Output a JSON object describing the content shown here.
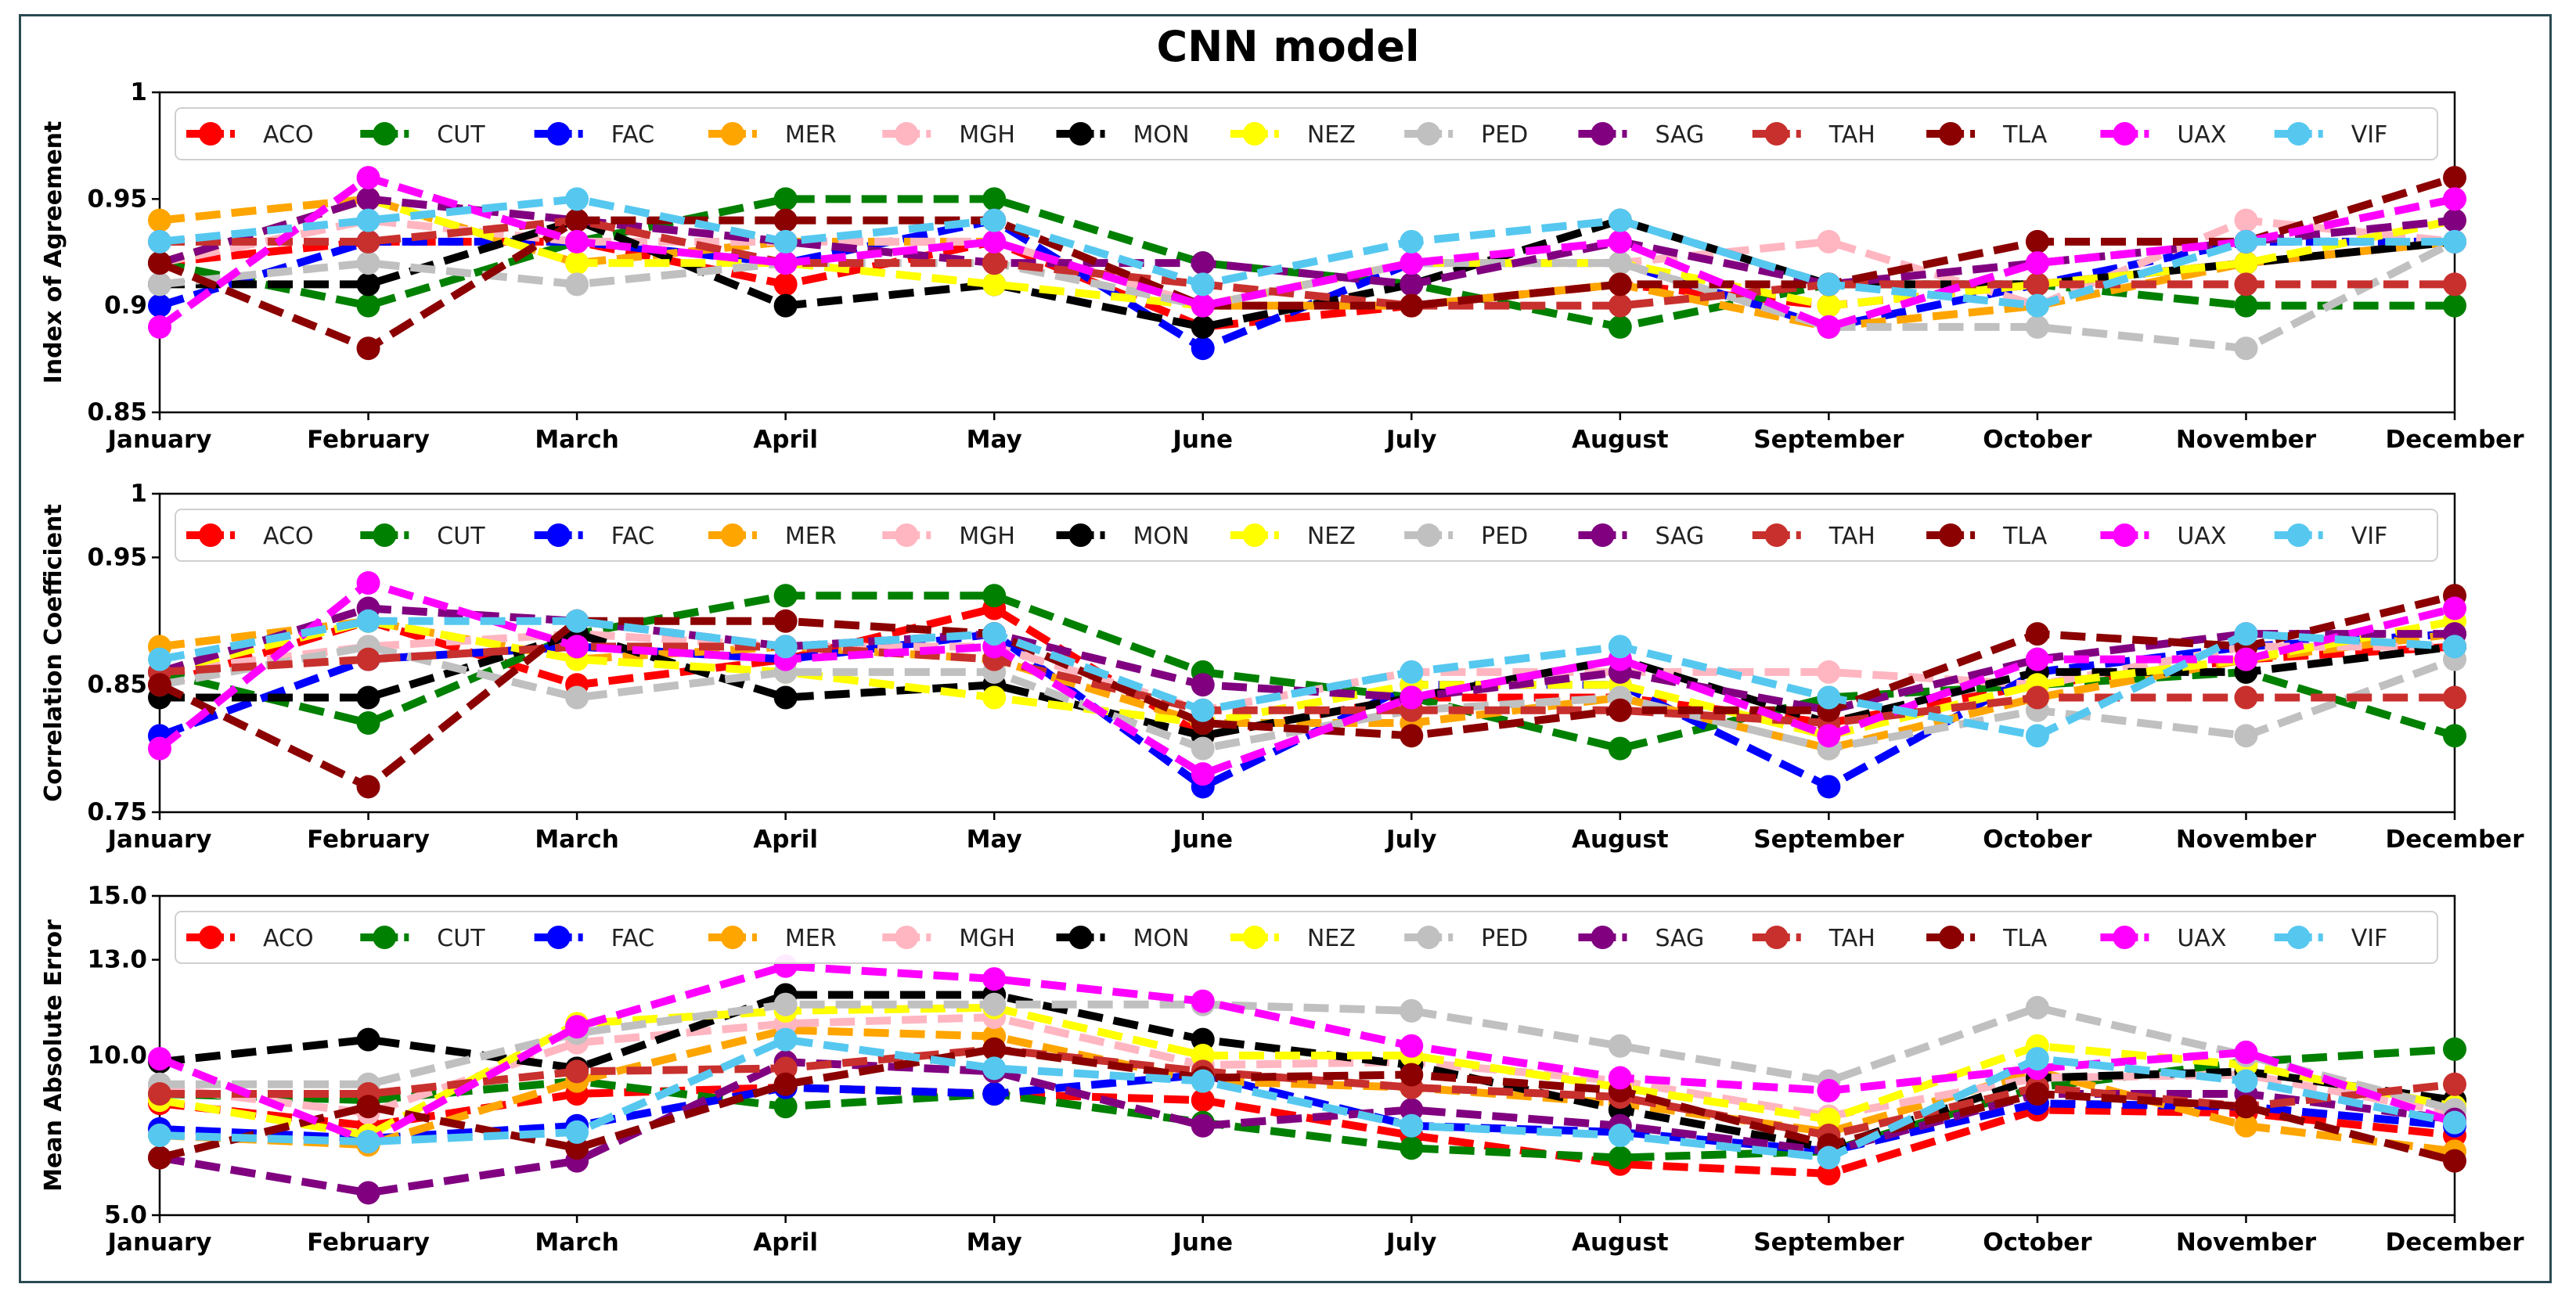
{
  "title": "CNN model",
  "stations": [
    "ACO",
    "CUT",
    "FAC",
    "MER",
    "MGH",
    "MON",
    "NEZ",
    "PED",
    "SAG",
    "TAH",
    "TLA",
    "UAX",
    "VIF"
  ],
  "colors": [
    "#ff0000",
    "#008000",
    "#0000ff",
    "#ffa500",
    "#ffb6c1",
    "#000000",
    "#ffff00",
    "#c0c0c0",
    "#800080",
    "#c8302d",
    "#8b0000",
    "#ff00ff",
    "#56c8f0"
  ],
  "chart_data": [
    {
      "type": "line",
      "ylabel": "Index of Agreement",
      "ylim": [
        0.85,
        1
      ],
      "yticks": [
        0.85,
        0.9,
        0.95,
        1
      ],
      "ytick_labels": [
        "0.85",
        "0.9",
        "0.95",
        "1"
      ],
      "categories": [
        "January",
        "February",
        "March",
        "April",
        "May",
        "June",
        "July",
        "August",
        "September",
        "October",
        "November",
        "December"
      ],
      "series": [
        {
          "name": "ACO",
          "values": [
            0.92,
            0.93,
            0.93,
            0.91,
            0.93,
            0.89,
            0.9,
            0.91,
            0.9,
            0.91,
            0.92,
            0.93
          ]
        },
        {
          "name": "CUT",
          "values": [
            0.92,
            0.9,
            0.93,
            0.95,
            0.95,
            0.92,
            0.91,
            0.89,
            0.91,
            0.91,
            0.9,
            0.9
          ]
        },
        {
          "name": "FAC",
          "values": [
            0.9,
            0.93,
            0.93,
            0.92,
            0.94,
            0.88,
            0.92,
            0.92,
            0.89,
            0.91,
            0.93,
            0.93
          ]
        },
        {
          "name": "MER",
          "values": [
            0.94,
            0.95,
            0.92,
            0.93,
            0.93,
            0.9,
            0.9,
            0.91,
            0.89,
            0.9,
            0.92,
            0.93
          ]
        },
        {
          "name": "MGH",
          "values": [
            0.92,
            0.94,
            0.93,
            0.93,
            0.93,
            0.9,
            0.92,
            0.92,
            0.93,
            0.9,
            0.94,
            0.93
          ]
        },
        {
          "name": "MON",
          "values": [
            0.91,
            0.91,
            0.94,
            0.9,
            0.91,
            0.89,
            0.91,
            0.94,
            0.91,
            0.91,
            0.92,
            0.93
          ]
        },
        {
          "name": "NEZ",
          "values": [
            0.92,
            0.95,
            0.92,
            0.92,
            0.91,
            0.9,
            0.92,
            0.92,
            0.9,
            0.91,
            0.92,
            0.94
          ]
        },
        {
          "name": "PED",
          "values": [
            0.91,
            0.92,
            0.91,
            0.92,
            0.92,
            0.9,
            0.92,
            0.92,
            0.89,
            0.89,
            0.88,
            0.93
          ]
        },
        {
          "name": "SAG",
          "values": [
            0.92,
            0.95,
            0.94,
            0.93,
            0.92,
            0.92,
            0.91,
            0.93,
            0.91,
            0.92,
            0.93,
            0.94
          ]
        },
        {
          "name": "TAH",
          "values": [
            0.93,
            0.93,
            0.94,
            0.92,
            0.92,
            0.91,
            0.9,
            0.9,
            0.91,
            0.91,
            0.91,
            0.91
          ]
        },
        {
          "name": "TLA",
          "values": [
            0.92,
            0.88,
            0.94,
            0.94,
            0.94,
            0.9,
            0.9,
            0.91,
            0.91,
            0.93,
            0.93,
            0.96
          ]
        },
        {
          "name": "UAX",
          "values": [
            0.89,
            0.96,
            0.93,
            0.92,
            0.93,
            0.9,
            0.92,
            0.93,
            0.89,
            0.92,
            0.93,
            0.95
          ]
        },
        {
          "name": "VIF",
          "values": [
            0.93,
            0.94,
            0.95,
            0.93,
            0.94,
            0.91,
            0.93,
            0.94,
            0.91,
            0.9,
            0.93,
            0.93
          ]
        }
      ]
    },
    {
      "type": "line",
      "ylabel": "Correlation Coefficient",
      "ylim": [
        0.75,
        1
      ],
      "yticks": [
        0.75,
        0.85,
        0.95,
        1
      ],
      "ytick_labels": [
        "0.75",
        "0.85",
        "0.95",
        "1"
      ],
      "categories": [
        "January",
        "February",
        "March",
        "April",
        "May",
        "June",
        "July",
        "August",
        "September",
        "October",
        "November",
        "December"
      ],
      "series": [
        {
          "name": "ACO",
          "values": [
            0.85,
            0.9,
            0.85,
            0.87,
            0.91,
            0.81,
            0.84,
            0.84,
            0.82,
            0.85,
            0.87,
            0.88
          ]
        },
        {
          "name": "CUT",
          "values": [
            0.86,
            0.82,
            0.89,
            0.92,
            0.92,
            0.86,
            0.84,
            0.8,
            0.84,
            0.85,
            0.86,
            0.81
          ]
        },
        {
          "name": "FAC",
          "values": [
            0.81,
            0.87,
            0.88,
            0.87,
            0.89,
            0.77,
            0.85,
            0.85,
            0.77,
            0.86,
            0.88,
            0.89
          ]
        },
        {
          "name": "MER",
          "values": [
            0.88,
            0.9,
            0.87,
            0.88,
            0.87,
            0.82,
            0.82,
            0.84,
            0.8,
            0.84,
            0.87,
            0.89
          ]
        },
        {
          "name": "MGH",
          "values": [
            0.86,
            0.88,
            0.89,
            0.88,
            0.88,
            0.83,
            0.86,
            0.86,
            0.86,
            0.85,
            0.88,
            0.88
          ]
        },
        {
          "name": "MON",
          "values": [
            0.84,
            0.84,
            0.89,
            0.84,
            0.85,
            0.81,
            0.84,
            0.87,
            0.82,
            0.86,
            0.86,
            0.88
          ]
        },
        {
          "name": "NEZ",
          "values": [
            0.86,
            0.9,
            0.87,
            0.86,
            0.84,
            0.82,
            0.85,
            0.85,
            0.81,
            0.85,
            0.87,
            0.9
          ]
        },
        {
          "name": "PED",
          "values": [
            0.85,
            0.88,
            0.84,
            0.86,
            0.86,
            0.8,
            0.83,
            0.84,
            0.8,
            0.83,
            0.81,
            0.87
          ]
        },
        {
          "name": "SAG",
          "values": [
            0.86,
            0.91,
            0.9,
            0.88,
            0.89,
            0.85,
            0.84,
            0.86,
            0.83,
            0.87,
            0.89,
            0.89
          ]
        },
        {
          "name": "TAH",
          "values": [
            0.86,
            0.87,
            0.88,
            0.88,
            0.87,
            0.83,
            0.83,
            0.83,
            0.82,
            0.84,
            0.84,
            0.84
          ]
        },
        {
          "name": "TLA",
          "values": [
            0.85,
            0.77,
            0.9,
            0.9,
            0.89,
            0.82,
            0.81,
            0.83,
            0.83,
            0.89,
            0.88,
            0.92
          ]
        },
        {
          "name": "UAX",
          "values": [
            0.8,
            0.93,
            0.88,
            0.87,
            0.88,
            0.78,
            0.84,
            0.87,
            0.81,
            0.87,
            0.87,
            0.91
          ]
        },
        {
          "name": "VIF",
          "values": [
            0.87,
            0.9,
            0.9,
            0.88,
            0.89,
            0.83,
            0.86,
            0.88,
            0.84,
            0.81,
            0.89,
            0.88
          ]
        }
      ]
    },
    {
      "type": "line",
      "ylabel": "Mean Absolute Error",
      "ylim": [
        5,
        15
      ],
      "yticks": [
        5,
        10,
        13,
        15
      ],
      "ytick_labels": [
        "5.0",
        "10.0",
        "13.0",
        "15.0"
      ],
      "categories": [
        "January",
        "February",
        "March",
        "April",
        "May",
        "June",
        "July",
        "August",
        "September",
        "October",
        "November",
        "December"
      ],
      "series": [
        {
          "name": "ACO",
          "values": [
            8.5,
            7.8,
            8.8,
            9.0,
            8.8,
            8.6,
            7.5,
            6.6,
            6.3,
            8.3,
            8.2,
            7.5
          ]
        },
        {
          "name": "CUT",
          "values": [
            8.8,
            8.6,
            9.2,
            8.4,
            8.8,
            7.9,
            7.1,
            6.8,
            7.0,
            9.0,
            9.8,
            10.2
          ]
        },
        {
          "name": "FAC",
          "values": [
            7.7,
            7.4,
            7.8,
            9.0,
            8.8,
            9.4,
            7.8,
            7.6,
            7.0,
            8.5,
            8.4,
            7.8
          ]
        },
        {
          "name": "MER",
          "values": [
            7.5,
            7.2,
            9.2,
            10.8,
            10.6,
            9.2,
            9.0,
            8.5,
            7.6,
            9.5,
            7.8,
            7.0
          ]
        },
        {
          "name": "MGH",
          "values": [
            9.0,
            8.2,
            10.4,
            11.0,
            11.2,
            9.7,
            9.8,
            9.2,
            8.1,
            9.3,
            9.4,
            8.2
          ]
        },
        {
          "name": "MON",
          "values": [
            9.8,
            10.5,
            9.6,
            11.9,
            11.9,
            10.5,
            9.7,
            8.3,
            7.1,
            9.3,
            9.5,
            8.6
          ]
        },
        {
          "name": "NEZ",
          "values": [
            8.6,
            7.5,
            11.0,
            11.4,
            11.5,
            10.0,
            10.0,
            9.0,
            8.0,
            10.3,
            9.7,
            8.4
          ]
        },
        {
          "name": "PED",
          "values": [
            9.1,
            9.1,
            10.7,
            11.6,
            11.6,
            11.6,
            11.4,
            10.3,
            9.2,
            11.5,
            10.0,
            8.3
          ]
        },
        {
          "name": "SAG",
          "values": [
            6.8,
            5.7,
            6.7,
            9.8,
            9.5,
            7.8,
            8.3,
            7.8,
            7.0,
            8.8,
            8.8,
            8.0
          ]
        },
        {
          "name": "TAH",
          "values": [
            8.8,
            8.8,
            9.5,
            9.6,
            10.2,
            9.5,
            9.0,
            8.7,
            7.5,
            9.0,
            8.4,
            9.1
          ]
        },
        {
          "name": "TLA",
          "values": [
            6.8,
            8.4,
            7.1,
            9.1,
            10.2,
            9.3,
            9.4,
            8.9,
            7.2,
            8.8,
            8.4,
            6.7
          ]
        },
        {
          "name": "UAX",
          "values": [
            9.9,
            7.3,
            10.9,
            12.8,
            12.4,
            11.7,
            10.3,
            9.3,
            8.9,
            9.6,
            10.1,
            7.9
          ]
        },
        {
          "name": "VIF",
          "values": [
            7.5,
            7.3,
            7.6,
            10.5,
            9.6,
            9.2,
            7.8,
            7.5,
            6.8,
            9.9,
            9.2,
            7.9
          ]
        }
      ]
    }
  ]
}
